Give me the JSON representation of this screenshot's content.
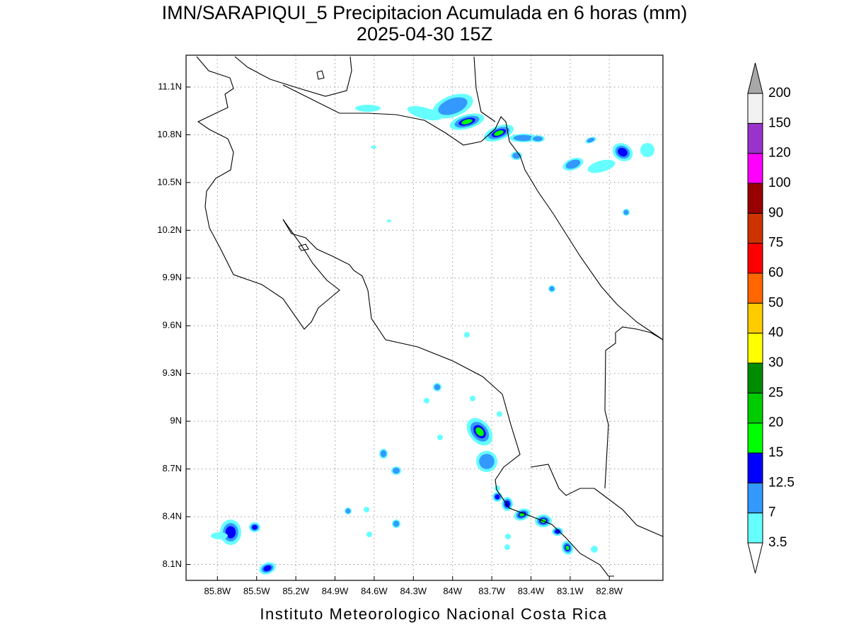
{
  "title": "IMN/SARAPIQUI_5 Precipitacion Acumulada en 6 horas (mm)",
  "subtitle": "2025-04-30 15Z",
  "footer": "Instituto Meteorologico Nacional Costa Rica",
  "map": {
    "lonlim": [
      -86.04,
      -82.39
    ],
    "latlim": [
      8.0,
      11.3
    ],
    "grid": true,
    "lon_ticks": [
      {
        "value": -85.8,
        "label": "85.8W"
      },
      {
        "value": -85.5,
        "label": "85.5W"
      },
      {
        "value": -85.2,
        "label": "85.2W"
      },
      {
        "value": -84.9,
        "label": "84.9W"
      },
      {
        "value": -84.6,
        "label": "84.6W"
      },
      {
        "value": -84.3,
        "label": "84.3W"
      },
      {
        "value": -84.0,
        "label": "84W"
      },
      {
        "value": -83.7,
        "label": "83.7W"
      },
      {
        "value": -83.4,
        "label": "83.4W"
      },
      {
        "value": -83.1,
        "label": "83.1W"
      },
      {
        "value": -82.8,
        "label": "82.8W"
      }
    ],
    "lat_ticks": [
      {
        "value": 8.1,
        "label": "8.1N"
      },
      {
        "value": 8.4,
        "label": "8.4N"
      },
      {
        "value": 8.7,
        "label": "8.7N"
      },
      {
        "value": 9.0,
        "label": "9N"
      },
      {
        "value": 9.3,
        "label": "9.3N"
      },
      {
        "value": 9.6,
        "label": "9.6N"
      },
      {
        "value": 9.9,
        "label": "9.9N"
      },
      {
        "value": 10.2,
        "label": "10.2N"
      },
      {
        "value": 10.5,
        "label": "10.5N"
      },
      {
        "value": 10.8,
        "label": "10.8N"
      },
      {
        "value": 11.1,
        "label": "11.1N"
      }
    ]
  },
  "colorbar": {
    "levels": [
      3.5,
      7,
      12.5,
      15,
      20,
      25,
      30,
      40,
      50,
      60,
      75,
      90,
      100,
      120,
      150,
      200
    ],
    "colors": [
      "#66ffff",
      "#3399ff",
      "#0000ff",
      "#00ff00",
      "#00cc00",
      "#008c00",
      "#ffff00",
      "#ffcc00",
      "#ff6600",
      "#ff0000",
      "#cc3300",
      "#990000",
      "#ff00ff",
      "#9933cc",
      "#f2f2f2"
    ],
    "over_color": "#a8a8a8",
    "under_color": "#ffffff"
  }
}
